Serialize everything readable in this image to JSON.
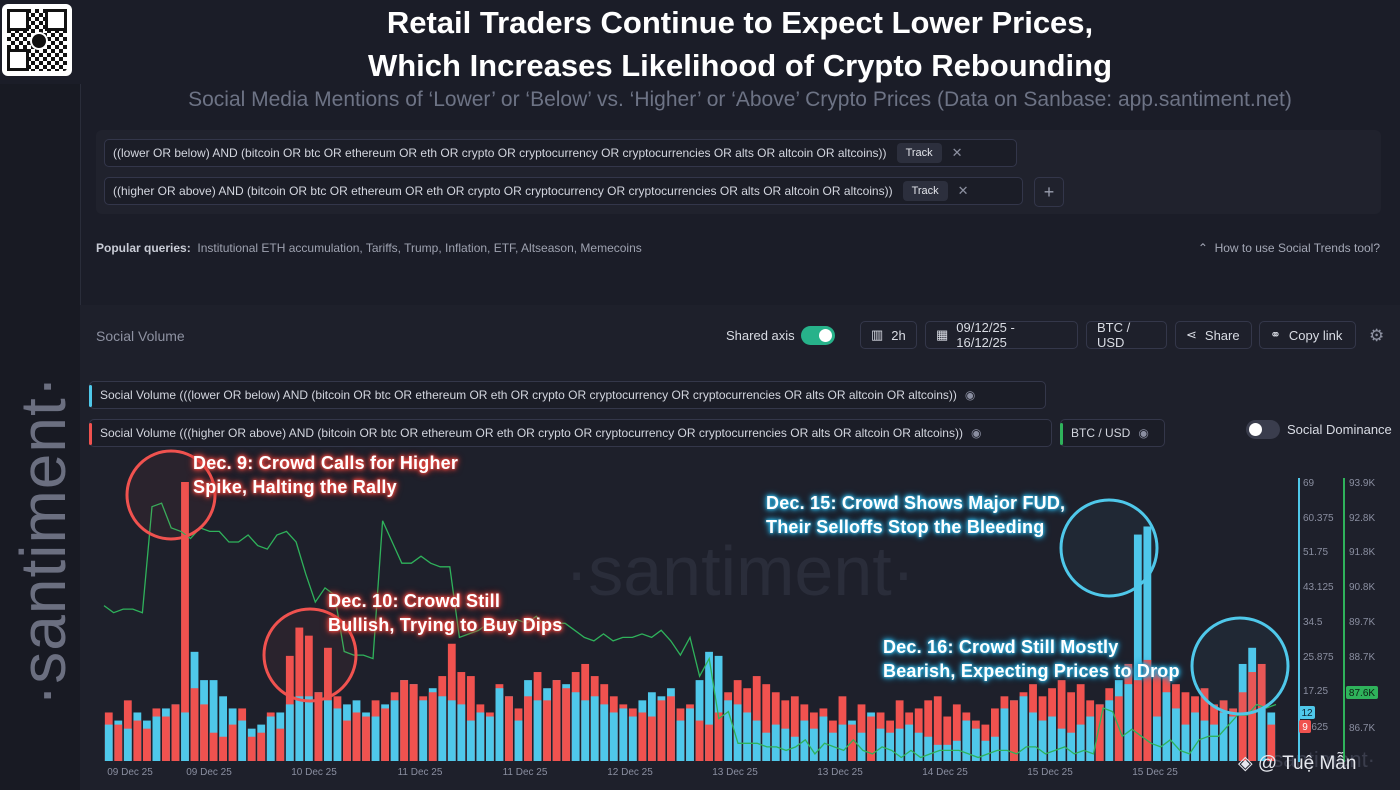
{
  "header": {
    "title_line1": "Retail Traders Continue to Expect Lower Prices,",
    "title_line2": "Which Increases Likelihood of Crypto Rebounding",
    "subtitle": "Social Media Mentions of ‘Lower’ or ‘Below’ vs. ‘Higher’ or ‘Above’ Crypto Prices (Data on Sanbase: app.santiment.net)"
  },
  "brand": {
    "vertical_watermark": "·santiment·",
    "chart_watermark": "·santiment·",
    "corner_watermark": "·santiment·"
  },
  "queries": [
    {
      "text": "((lower OR below) AND (bitcoin OR btc OR ethereum OR eth OR crypto OR cryptocurrency OR cryptocurrencies OR alts OR altcoin OR altcoins))",
      "button": "Track"
    },
    {
      "text": "((higher OR above) AND (bitcoin OR btc OR ethereum OR eth OR crypto OR cryptocurrency OR cryptocurrencies OR alts OR altcoin OR altcoins))",
      "button": "Track"
    }
  ],
  "popular": {
    "label": "Popular queries:",
    "items": "Institutional ETH accumulation, Tariffs, Trump, Inflation, ETF, Altseason, Memecoins"
  },
  "howto": "How to use Social Trends tool?",
  "toolbar": {
    "section_title": "Social Volume",
    "shared_axis": "Shared axis",
    "interval": "2h",
    "date_range": "09/12/25 - 16/12/25",
    "pair": "BTC / USD",
    "share": "Share",
    "copy_link": "Copy link",
    "social_dominance": "Social Dominance"
  },
  "legend": [
    {
      "text": "Social Volume (((lower OR below) AND (bitcoin OR btc OR ethereum OR eth OR crypto OR cryptocurrency OR cryptocurrencies OR alts OR altcoin OR altcoins))",
      "color": "#4fc8ea"
    },
    {
      "text": "Social Volume (((higher OR above) AND (bitcoin OR btc OR ethereum OR eth OR crypto OR cryptocurrency OR cryptocurrencies OR alts OR altcoin OR altcoins))",
      "color": "#f0524f"
    },
    {
      "text": "BTC / USD",
      "color": "#2fb25b"
    }
  ],
  "annotations": [
    {
      "line1": "Dec. 9: Crowd Calls for Higher",
      "line2": "Spike, Halting the Rally",
      "tone": "red"
    },
    {
      "line1": "Dec. 10: Crowd Still",
      "line2": "Bullish, Trying to Buy Dips",
      "tone": "red"
    },
    {
      "line1": "Dec. 15: Crowd Shows Major FUD,",
      "line2": "Their Selloffs Stop the Bleeding",
      "tone": "blue"
    },
    {
      "line1": "Dec. 16: Crowd Still Mostly",
      "line2": "Bearish, Expecting Prices to Drop",
      "tone": "blue"
    }
  ],
  "credit": "@ Tuệ Mẫn",
  "colors": {
    "lower": "#4fc8ea",
    "higher": "#f0524f",
    "btc": "#2fb25b",
    "background": "#1e202b"
  },
  "chart_data": {
    "type": "bar",
    "title": "Social Volume",
    "x_tick_labels": [
      "09 Dec 25",
      "09 Dec 25",
      "10 Dec 25",
      "11 Dec 25",
      "11 Dec 25",
      "12 Dec 25",
      "13 Dec 25",
      "13 Dec 25",
      "14 Dec 25",
      "15 Dec 25",
      "15 Dec 25"
    ],
    "y_left_ticks": [
      "69",
      "60.375",
      "51.75",
      "43.125",
      "34.5",
      "25.875",
      "17.25",
      "8.625"
    ],
    "y_right_ticks": [
      "93.9K",
      "92.8K",
      "91.8K",
      "90.8K",
      "89.7K",
      "88.7K",
      "87.6K",
      "86.7K"
    ],
    "ylim_volume": [
      0,
      69
    ],
    "ylim_btc": [
      86000,
      93900
    ],
    "current_lower_value": "12",
    "current_higher_value": "9",
    "current_btc_value": "87.6K",
    "series": [
      {
        "name": "Social Volume (lower OR below)",
        "values": [
          9,
          10,
          8,
          12,
          10,
          11,
          13,
          14,
          12,
          27,
          20,
          20,
          16,
          13,
          10,
          8,
          9,
          11,
          12,
          14,
          16,
          16,
          17,
          15,
          13,
          14,
          15,
          12,
          11,
          14,
          15,
          20,
          19,
          15,
          18,
          16,
          15,
          14,
          10,
          12,
          11,
          18,
          16,
          10,
          20,
          15,
          18,
          20,
          19,
          17,
          15,
          16,
          14,
          12,
          13,
          11,
          15,
          17,
          16,
          18,
          10,
          13,
          20,
          27,
          26,
          15,
          14,
          12,
          10,
          7,
          9,
          8,
          6,
          10,
          8,
          11,
          7,
          9,
          10,
          7,
          12,
          8,
          7,
          8,
          9,
          7,
          6,
          4,
          4,
          5,
          10,
          8,
          5,
          6,
          13,
          15,
          16,
          12,
          10,
          11,
          8,
          7,
          9,
          11,
          14,
          15,
          20,
          19,
          56,
          58,
          11,
          17,
          13,
          9,
          12,
          10,
          9,
          12,
          11,
          24,
          28,
          13,
          12
        ]
      },
      {
        "name": "Social Volume (higher OR above)",
        "values": [
          12,
          9,
          15,
          10,
          8,
          13,
          11,
          14,
          69,
          18,
          14,
          7,
          6,
          9,
          13,
          6,
          7,
          12,
          8,
          26,
          33,
          31,
          17,
          28,
          16,
          10,
          12,
          11,
          15,
          13,
          17,
          20,
          19,
          16,
          17,
          21,
          29,
          22,
          21,
          14,
          12,
          19,
          16,
          13,
          16,
          22,
          15,
          20,
          18,
          22,
          24,
          21,
          19,
          16,
          14,
          13,
          12,
          11,
          15,
          16,
          13,
          14,
          10,
          9,
          12,
          17,
          20,
          18,
          21,
          19,
          17,
          15,
          16,
          14,
          12,
          13,
          10,
          16,
          9,
          14,
          11,
          12,
          10,
          15,
          12,
          13,
          15,
          16,
          11,
          14,
          12,
          10,
          9,
          13,
          16,
          15,
          17,
          19,
          16,
          18,
          20,
          17,
          19,
          15,
          14,
          18,
          16,
          24,
          20,
          25,
          23,
          21,
          19,
          17,
          16,
          18,
          14,
          15,
          13,
          17,
          22,
          24,
          9
        ]
      },
      {
        "name": "BTC / USD",
        "values": [
          90400,
          90200,
          90300,
          90300,
          90200,
          93200,
          93300,
          92600,
          92500,
          92300,
          92600,
          92500,
          92500,
          92200,
          92200,
          92400,
          92100,
          92000,
          92400,
          92500,
          92200,
          91300,
          90500,
          90900,
          90700,
          89100,
          89000,
          89000,
          88900,
          92800,
          92200,
          91600,
          91600,
          91800,
          91600,
          91500,
          91500,
          89500,
          89600,
          89700,
          89900,
          89800,
          89900,
          90000,
          89900,
          90100,
          89800,
          89900,
          89900,
          89700,
          89500,
          89400,
          89600,
          89400,
          89500,
          89500,
          89600,
          89500,
          89700,
          89400,
          89000,
          89500,
          88400,
          88900,
          87200,
          87400,
          86500,
          86500,
          86500,
          86400,
          86400,
          86300,
          86400,
          86600,
          86200,
          86500,
          86400,
          86300,
          86600,
          86300,
          86200,
          86400,
          86300,
          86100,
          86300,
          86100,
          86200,
          86300,
          86300,
          86300,
          86200,
          86100,
          86200,
          86300,
          86300,
          86200,
          86400,
          86400,
          86200,
          86300,
          86400,
          86200,
          86300,
          86200,
          87500,
          87400,
          86700,
          86900,
          86700,
          86500,
          86400,
          86600,
          86300,
          86200,
          86600,
          86700,
          86700,
          87000,
          87300,
          87300,
          87600,
          87500,
          87600
        ]
      }
    ]
  }
}
